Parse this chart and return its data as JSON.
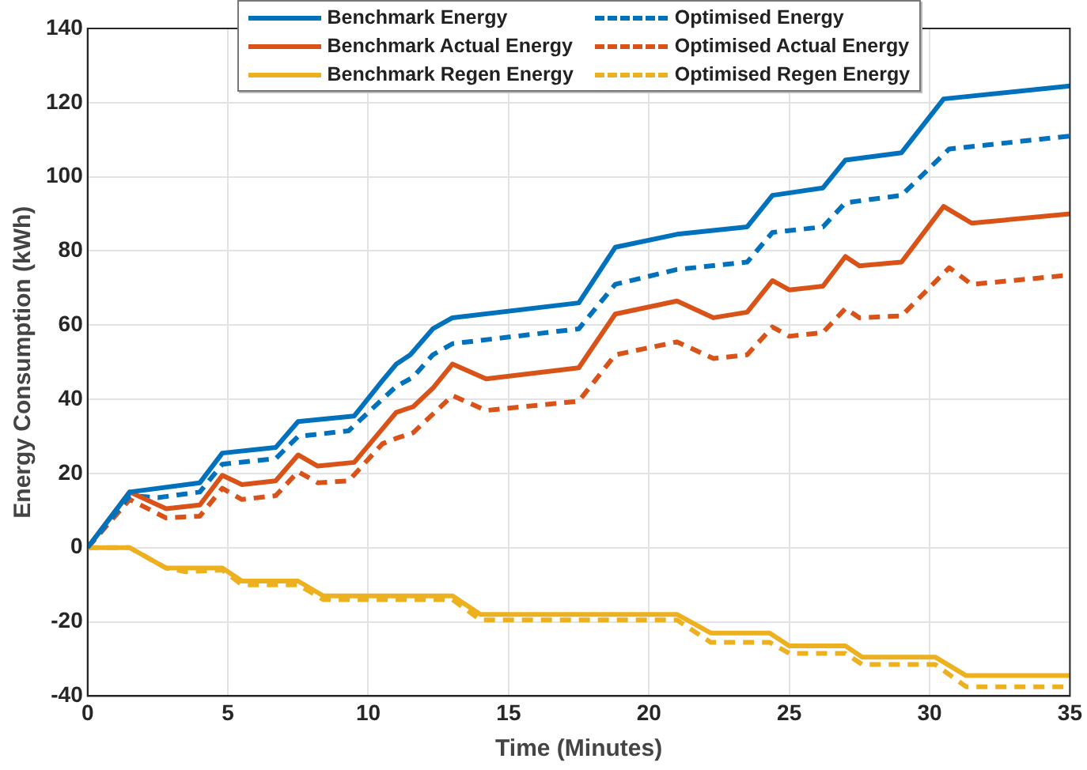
{
  "chart_data": {
    "type": "line",
    "xlabel": "Time (Minutes)",
    "ylabel": "Energy Consumption (kWh)",
    "xlim": [
      0,
      35
    ],
    "xticks": [
      0,
      5,
      10,
      15,
      20,
      25,
      30,
      35
    ],
    "ylim": [
      -40,
      140
    ],
    "yticks": [
      -40,
      -20,
      0,
      20,
      40,
      60,
      80,
      100,
      120,
      140
    ],
    "grid": true,
    "legend": "top",
    "marker": "none",
    "series": [
      {
        "name": "Benchmark Energy",
        "color": "#0072bd",
        "line_style": "solid",
        "x": [
          0,
          1.5,
          4,
          4.8,
          6.7,
          7.5,
          9.5,
          10.5,
          11,
          11.5,
          12.3,
          13,
          17.5,
          18.8,
          21,
          23.5,
          24.4,
          26.2,
          27,
          29,
          30.5,
          35
        ],
        "values": [
          0,
          15,
          17.5,
          25.5,
          27,
          34,
          35.5,
          45,
          49.5,
          52,
          59,
          62,
          66,
          81,
          84.5,
          86.5,
          95,
          97,
          104.5,
          106.5,
          121,
          124.5
        ]
      },
      {
        "name": "Benchmark Actual Energy",
        "color": "#d95319",
        "line_style": "solid",
        "x": [
          0,
          1.5,
          2.8,
          4,
          4.8,
          5.5,
          6.7,
          7.5,
          8.2,
          9.5,
          10.5,
          11,
          11.6,
          12.3,
          13,
          14.2,
          17.5,
          18.8,
          21,
          22.3,
          23.5,
          24.4,
          25,
          26.2,
          27,
          27.5,
          29,
          30.5,
          31.5,
          35
        ],
        "values": [
          0,
          15,
          10.5,
          11.5,
          19.5,
          17,
          18,
          25,
          22,
          23,
          32,
          36.5,
          38,
          43,
          49.5,
          45.5,
          48.5,
          63,
          66.5,
          62,
          63.5,
          72,
          69.5,
          70.5,
          78.5,
          76,
          77,
          92,
          87.5,
          90
        ]
      },
      {
        "name": "Benchmark Regen Energy",
        "color": "#edb120",
        "line_style": "solid",
        "x": [
          0,
          1.5,
          2.8,
          4.8,
          5.5,
          7.5,
          8.4,
          13,
          14,
          21,
          22.2,
          24.3,
          25,
          27,
          27.6,
          30.2,
          31.3,
          35
        ],
        "values": [
          0,
          0,
          -5.5,
          -5.5,
          -9,
          -9,
          -13,
          -13,
          -18,
          -18,
          -23,
          -23,
          -26.5,
          -26.5,
          -29.5,
          -29.5,
          -34.5,
          -34.5
        ]
      },
      {
        "name": "Optimised Energy",
        "color": "#0072bd",
        "line_style": "dashed",
        "x": [
          0,
          1.5,
          2.5,
          4,
          4.8,
          6.7,
          7.5,
          9.3,
          10.5,
          11,
          11.6,
          12.3,
          13,
          17.5,
          18.8,
          21,
          23.5,
          24.4,
          26.2,
          27,
          29,
          30.7,
          35
        ],
        "values": [
          0,
          14,
          13.5,
          15,
          22.5,
          24,
          30,
          31.5,
          40,
          43.5,
          46,
          52,
          55,
          59,
          71,
          75,
          77,
          85,
          86.5,
          93,
          95,
          107.5,
          111
        ]
      },
      {
        "name": "Optimised Actual Energy",
        "color": "#d95319",
        "line_style": "dashed",
        "x": [
          0,
          1.5,
          2.8,
          4,
          4.8,
          5.5,
          6.7,
          7.5,
          8.2,
          9.3,
          10.5,
          11,
          11.6,
          12.3,
          13,
          14.2,
          17.5,
          18.8,
          21,
          22.3,
          23.5,
          24.4,
          25,
          26.2,
          27,
          27.5,
          29,
          30.7,
          31.5,
          35
        ],
        "values": [
          0,
          13,
          8,
          8.5,
          16,
          13,
          14,
          20.5,
          17.5,
          18,
          28,
          29.5,
          31,
          36,
          41,
          37,
          39.5,
          52,
          55.5,
          51,
          52,
          59.5,
          57,
          58,
          64.5,
          62,
          62.5,
          75.5,
          71,
          73.5
        ]
      },
      {
        "name": "Optimised Regen Energy",
        "color": "#edb120",
        "line_style": "dashed",
        "x": [
          0,
          1.5,
          2.8,
          3.5,
          4.8,
          5.5,
          7.5,
          8.4,
          13,
          14,
          21,
          22.2,
          24.3,
          25,
          27,
          27.6,
          30.2,
          31.3,
          35
        ],
        "values": [
          0,
          0,
          -5.5,
          -6.5,
          -6,
          -10,
          -10,
          -14,
          -14,
          -19.5,
          -19.5,
          -25.5,
          -25.5,
          -28.5,
          -28.5,
          -31.5,
          -31.5,
          -37.5,
          -37.5
        ]
      }
    ]
  }
}
